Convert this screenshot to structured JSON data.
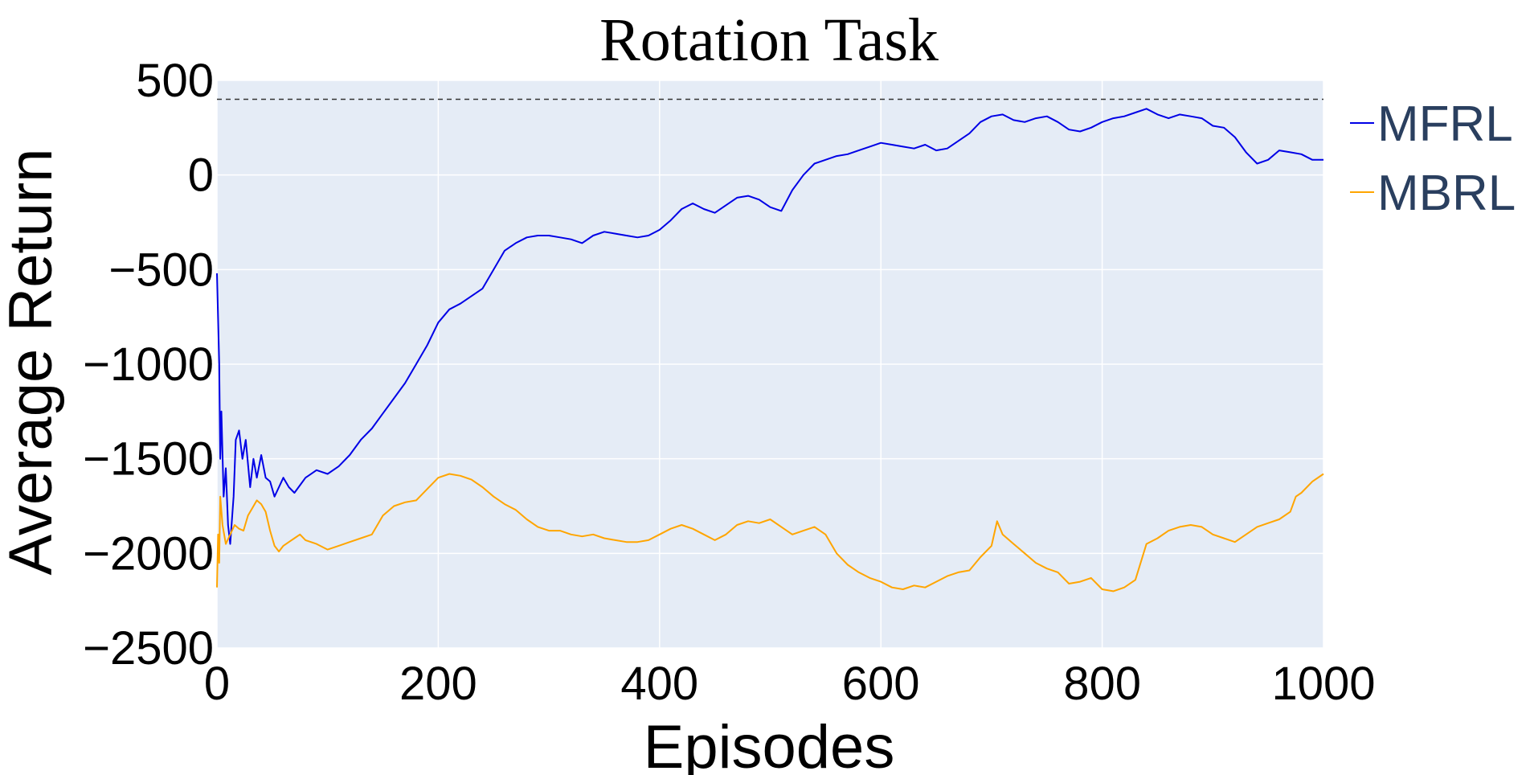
{
  "chart_data": {
    "type": "line",
    "title": "Rotation Task",
    "xlabel": "Episodes",
    "ylabel": "Average Return",
    "xlim": [
      0,
      1000
    ],
    "ylim": [
      -2500,
      500
    ],
    "xticks": [
      "0",
      "200",
      "400",
      "600",
      "800",
      "1000"
    ],
    "yticks": [
      "500",
      "0",
      "−500",
      "−1000",
      "−1500",
      "−2000",
      "−2500"
    ],
    "xtick_values": [
      0,
      200,
      400,
      600,
      800,
      1000
    ],
    "ytick_values": [
      500,
      0,
      -500,
      -1000,
      -1500,
      -2000,
      -2500
    ],
    "grid": true,
    "legend_position": "right",
    "reference_line": {
      "y": 400,
      "style": "dashed",
      "color": "#333333"
    },
    "series": [
      {
        "name": "MFRL",
        "color": "#0000e6",
        "points": [
          [
            0,
            -520
          ],
          [
            2,
            -1000
          ],
          [
            3,
            -1500
          ],
          [
            4,
            -1250
          ],
          [
            6,
            -1700
          ],
          [
            8,
            -1550
          ],
          [
            10,
            -1850
          ],
          [
            12,
            -1950
          ],
          [
            15,
            -1700
          ],
          [
            17,
            -1400
          ],
          [
            20,
            -1350
          ],
          [
            23,
            -1500
          ],
          [
            26,
            -1400
          ],
          [
            30,
            -1650
          ],
          [
            33,
            -1500
          ],
          [
            36,
            -1600
          ],
          [
            40,
            -1480
          ],
          [
            44,
            -1600
          ],
          [
            48,
            -1620
          ],
          [
            52,
            -1700
          ],
          [
            56,
            -1650
          ],
          [
            60,
            -1600
          ],
          [
            65,
            -1650
          ],
          [
            70,
            -1680
          ],
          [
            75,
            -1640
          ],
          [
            80,
            -1600
          ],
          [
            90,
            -1560
          ],
          [
            100,
            -1580
          ],
          [
            110,
            -1540
          ],
          [
            120,
            -1480
          ],
          [
            130,
            -1400
          ],
          [
            140,
            -1340
          ],
          [
            150,
            -1260
          ],
          [
            160,
            -1180
          ],
          [
            170,
            -1100
          ],
          [
            180,
            -1000
          ],
          [
            190,
            -900
          ],
          [
            200,
            -780
          ],
          [
            210,
            -710
          ],
          [
            220,
            -680
          ],
          [
            230,
            -640
          ],
          [
            240,
            -600
          ],
          [
            250,
            -500
          ],
          [
            260,
            -400
          ],
          [
            270,
            -360
          ],
          [
            280,
            -330
          ],
          [
            290,
            -320
          ],
          [
            300,
            -320
          ],
          [
            310,
            -330
          ],
          [
            320,
            -340
          ],
          [
            330,
            -360
          ],
          [
            340,
            -320
          ],
          [
            350,
            -300
          ],
          [
            360,
            -310
          ],
          [
            370,
            -320
          ],
          [
            380,
            -330
          ],
          [
            390,
            -320
          ],
          [
            400,
            -290
          ],
          [
            410,
            -240
          ],
          [
            420,
            -180
          ],
          [
            430,
            -150
          ],
          [
            440,
            -180
          ],
          [
            450,
            -200
          ],
          [
            460,
            -160
          ],
          [
            470,
            -120
          ],
          [
            480,
            -110
          ],
          [
            490,
            -130
          ],
          [
            500,
            -170
          ],
          [
            510,
            -190
          ],
          [
            520,
            -80
          ],
          [
            530,
            0
          ],
          [
            540,
            60
          ],
          [
            550,
            80
          ],
          [
            560,
            100
          ],
          [
            570,
            110
          ],
          [
            580,
            130
          ],
          [
            590,
            150
          ],
          [
            600,
            170
          ],
          [
            610,
            160
          ],
          [
            620,
            150
          ],
          [
            630,
            140
          ],
          [
            640,
            160
          ],
          [
            650,
            130
          ],
          [
            660,
            140
          ],
          [
            670,
            180
          ],
          [
            680,
            220
          ],
          [
            690,
            280
          ],
          [
            700,
            310
          ],
          [
            710,
            320
          ],
          [
            720,
            290
          ],
          [
            730,
            280
          ],
          [
            740,
            300
          ],
          [
            750,
            310
          ],
          [
            760,
            280
          ],
          [
            770,
            240
          ],
          [
            780,
            230
          ],
          [
            790,
            250
          ],
          [
            800,
            280
          ],
          [
            810,
            300
          ],
          [
            820,
            310
          ],
          [
            830,
            330
          ],
          [
            840,
            350
          ],
          [
            850,
            320
          ],
          [
            860,
            300
          ],
          [
            870,
            320
          ],
          [
            880,
            310
          ],
          [
            890,
            300
          ],
          [
            900,
            260
          ],
          [
            910,
            250
          ],
          [
            920,
            200
          ],
          [
            930,
            120
          ],
          [
            940,
            60
          ],
          [
            950,
            80
          ],
          [
            960,
            130
          ],
          [
            970,
            120
          ],
          [
            980,
            110
          ],
          [
            990,
            80
          ],
          [
            1000,
            80
          ]
        ]
      },
      {
        "name": "MBRL",
        "color": "#ffa500",
        "points": [
          [
            0,
            -2180
          ],
          [
            1,
            -1900
          ],
          [
            2,
            -2050
          ],
          [
            3,
            -1700
          ],
          [
            5,
            -1850
          ],
          [
            8,
            -1950
          ],
          [
            12,
            -1900
          ],
          [
            16,
            -1850
          ],
          [
            20,
            -1870
          ],
          [
            24,
            -1880
          ],
          [
            28,
            -1800
          ],
          [
            32,
            -1760
          ],
          [
            36,
            -1720
          ],
          [
            40,
            -1740
          ],
          [
            44,
            -1780
          ],
          [
            48,
            -1880
          ],
          [
            52,
            -1960
          ],
          [
            56,
            -1990
          ],
          [
            60,
            -1960
          ],
          [
            65,
            -1940
          ],
          [
            70,
            -1920
          ],
          [
            75,
            -1900
          ],
          [
            80,
            -1930
          ],
          [
            90,
            -1950
          ],
          [
            100,
            -1980
          ],
          [
            110,
            -1960
          ],
          [
            120,
            -1940
          ],
          [
            130,
            -1920
          ],
          [
            140,
            -1900
          ],
          [
            150,
            -1800
          ],
          [
            160,
            -1750
          ],
          [
            170,
            -1730
          ],
          [
            180,
            -1720
          ],
          [
            190,
            -1660
          ],
          [
            200,
            -1600
          ],
          [
            210,
            -1580
          ],
          [
            220,
            -1590
          ],
          [
            230,
            -1610
          ],
          [
            240,
            -1650
          ],
          [
            250,
            -1700
          ],
          [
            260,
            -1740
          ],
          [
            270,
            -1770
          ],
          [
            280,
            -1820
          ],
          [
            290,
            -1860
          ],
          [
            300,
            -1880
          ],
          [
            310,
            -1880
          ],
          [
            320,
            -1900
          ],
          [
            330,
            -1910
          ],
          [
            340,
            -1900
          ],
          [
            350,
            -1920
          ],
          [
            360,
            -1930
          ],
          [
            370,
            -1940
          ],
          [
            380,
            -1940
          ],
          [
            390,
            -1930
          ],
          [
            400,
            -1900
          ],
          [
            410,
            -1870
          ],
          [
            420,
            -1850
          ],
          [
            430,
            -1870
          ],
          [
            440,
            -1900
          ],
          [
            450,
            -1930
          ],
          [
            460,
            -1900
          ],
          [
            470,
            -1850
          ],
          [
            480,
            -1830
          ],
          [
            490,
            -1840
          ],
          [
            500,
            -1820
          ],
          [
            510,
            -1860
          ],
          [
            520,
            -1900
          ],
          [
            530,
            -1880
          ],
          [
            540,
            -1860
          ],
          [
            550,
            -1900
          ],
          [
            560,
            -2000
          ],
          [
            570,
            -2060
          ],
          [
            580,
            -2100
          ],
          [
            590,
            -2130
          ],
          [
            600,
            -2150
          ],
          [
            610,
            -2180
          ],
          [
            620,
            -2190
          ],
          [
            630,
            -2170
          ],
          [
            640,
            -2180
          ],
          [
            650,
            -2150
          ],
          [
            660,
            -2120
          ],
          [
            670,
            -2100
          ],
          [
            680,
            -2090
          ],
          [
            690,
            -2020
          ],
          [
            700,
            -1960
          ],
          [
            705,
            -1830
          ],
          [
            710,
            -1900
          ],
          [
            720,
            -1950
          ],
          [
            730,
            -2000
          ],
          [
            740,
            -2050
          ],
          [
            750,
            -2080
          ],
          [
            760,
            -2100
          ],
          [
            770,
            -2160
          ],
          [
            780,
            -2150
          ],
          [
            790,
            -2130
          ],
          [
            800,
            -2190
          ],
          [
            810,
            -2200
          ],
          [
            820,
            -2180
          ],
          [
            830,
            -2140
          ],
          [
            840,
            -1950
          ],
          [
            850,
            -1920
          ],
          [
            860,
            -1880
          ],
          [
            870,
            -1860
          ],
          [
            880,
            -1850
          ],
          [
            890,
            -1860
          ],
          [
            900,
            -1900
          ],
          [
            910,
            -1920
          ],
          [
            920,
            -1940
          ],
          [
            930,
            -1900
          ],
          [
            940,
            -1860
          ],
          [
            950,
            -1840
          ],
          [
            960,
            -1820
          ],
          [
            970,
            -1780
          ],
          [
            975,
            -1700
          ],
          [
            980,
            -1680
          ],
          [
            990,
            -1620
          ],
          [
            1000,
            -1580
          ]
        ]
      }
    ]
  }
}
